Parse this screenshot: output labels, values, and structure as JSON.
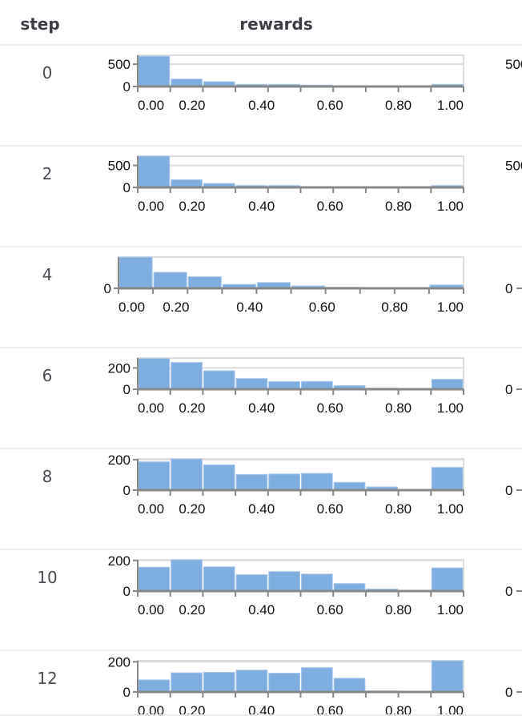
{
  "header": {
    "step": "step",
    "rewards": "rewards"
  },
  "colors": {
    "bar": "#7eaddf",
    "axis": "#888888",
    "grid": "#dddddd",
    "divider": "#eeeeee"
  },
  "chart_data": {
    "type": "bar",
    "title": "",
    "xlabel": "",
    "ylabel": "",
    "x_ticks": [
      "0.00",
      "0.20",
      "0.40",
      "0.60",
      "0.80",
      "1.00"
    ],
    "bin_edges": [
      0,
      0.1,
      0.2,
      0.3,
      0.4,
      0.5,
      0.6,
      0.7,
      0.8,
      0.9,
      1.0
    ],
    "grid": true,
    "rows": [
      {
        "step": "0",
        "y_ticks": [
          "0",
          "500"
        ],
        "y_tick_values": [
          0,
          500
        ],
        "ylim": [
          0,
          700
        ],
        "values": [
          679,
          167,
          107,
          48,
          48,
          30,
          12,
          6,
          0,
          48
        ],
        "right_label": "500"
      },
      {
        "step": "2",
        "y_ticks": [
          "0",
          "500"
        ],
        "y_tick_values": [
          0,
          500
        ],
        "ylim": [
          0,
          711
        ],
        "values": [
          711,
          175,
          90,
          42,
          42,
          18,
          6,
          3,
          0,
          42
        ],
        "right_label": "500"
      },
      {
        "step": "4",
        "y_ticks": [
          "0"
        ],
        "y_tick_values": [
          0
        ],
        "ylim": [
          0,
          119
        ],
        "values": [
          119,
          61,
          44,
          15,
          22,
          9,
          4,
          2,
          0,
          13
        ],
        "right_label": "0"
      },
      {
        "step": "6",
        "y_ticks": [
          "0",
          "200"
        ],
        "y_tick_values": [
          0,
          200
        ],
        "ylim": [
          0,
          293
        ],
        "values": [
          288,
          251,
          173,
          100,
          71,
          73,
          34,
          10,
          0,
          93
        ],
        "right_label": "0"
      },
      {
        "step": "8",
        "y_ticks": [
          "0",
          "200"
        ],
        "y_tick_values": [
          0,
          200
        ],
        "ylim": [
          0,
          205
        ],
        "values": [
          186,
          205,
          166,
          103,
          106,
          110,
          51,
          21,
          0,
          149
        ],
        "right_label": "0"
      },
      {
        "step": "10",
        "y_ticks": [
          "0",
          "200"
        ],
        "y_tick_values": [
          0,
          200
        ],
        "ylim": [
          0,
          204
        ],
        "values": [
          156,
          204,
          158,
          107,
          127,
          111,
          49,
          13,
          0,
          151
        ],
        "right_label": "0"
      },
      {
        "step": "12",
        "y_ticks": [
          "0",
          "200"
        ],
        "y_tick_values": [
          0,
          200
        ],
        "ylim": [
          0,
          207
        ],
        "values": [
          80,
          127,
          130,
          145,
          125,
          161,
          91,
          7,
          0,
          207
        ],
        "right_label": "0"
      }
    ]
  }
}
